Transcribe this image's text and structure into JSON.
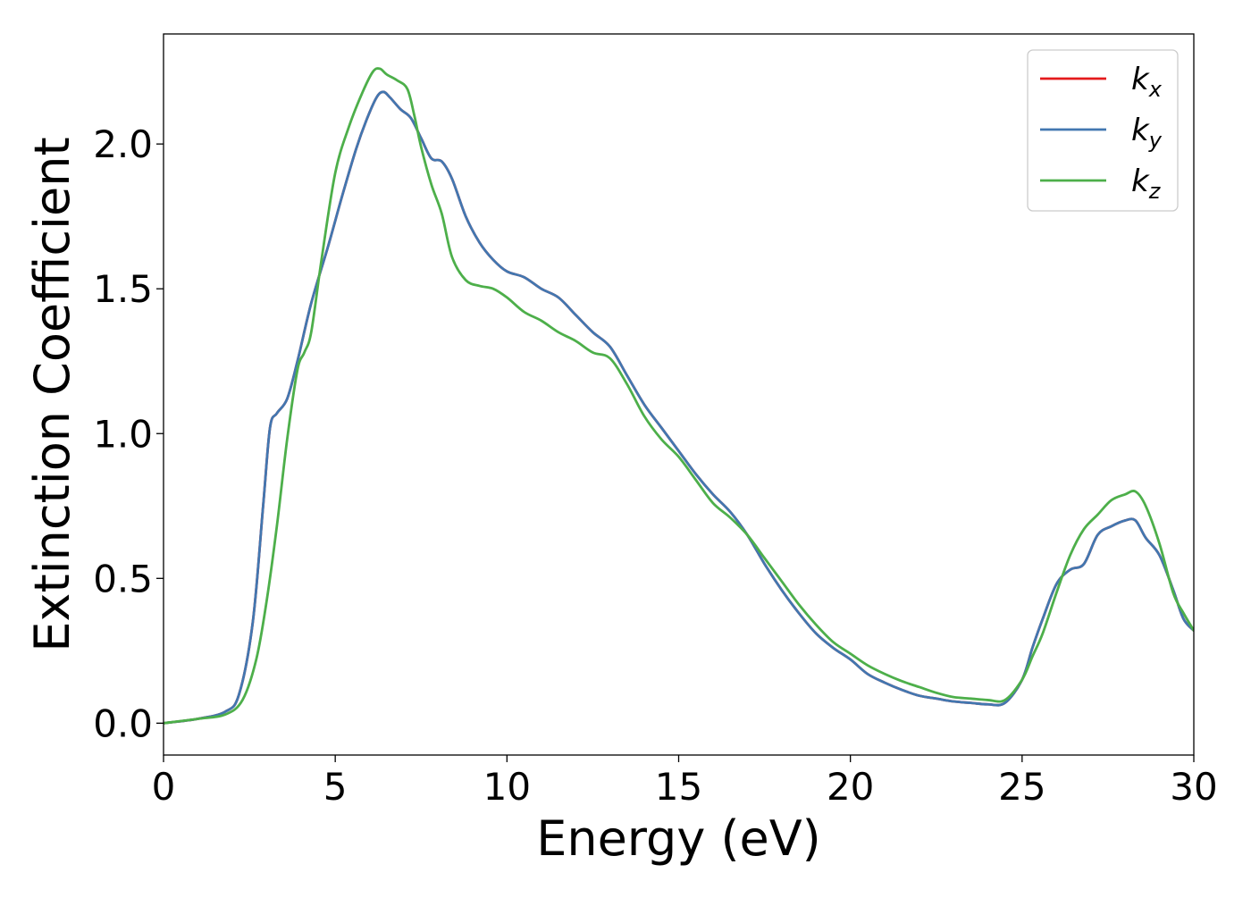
{
  "chart_data": {
    "type": "line",
    "title": "",
    "xlabel": "Energy (eV)",
    "ylabel": "Extinction Coefficient",
    "xlim": [
      0,
      30
    ],
    "ylim": [
      -0.11,
      2.38
    ],
    "xticks": [
      0,
      5,
      10,
      15,
      20,
      25,
      30
    ],
    "xtick_labels": [
      "0",
      "5",
      "10",
      "15",
      "20",
      "25",
      "30"
    ],
    "yticks": [
      0.0,
      0.5,
      1.0,
      1.5,
      2.0
    ],
    "ytick_labels": [
      "0.0",
      "0.5",
      "1.0",
      "1.5",
      "2.0"
    ],
    "grid": false,
    "legend_position": "top-right",
    "series": [
      {
        "name": "k",
        "subscript": "x",
        "color": "#e41a1c",
        "x": [
          0,
          1,
          1.8,
          2.2,
          2.6,
          2.9,
          3.1,
          3.3,
          3.6,
          3.9,
          4.3,
          4.8,
          5.2,
          5.6,
          5.9,
          6.2,
          6.4,
          6.6,
          6.9,
          7.2,
          7.5,
          7.8,
          8.1,
          8.4,
          8.8,
          9.2,
          9.6,
          10.0,
          10.5,
          11.0,
          11.5,
          12.0,
          12.5,
          13.0,
          13.5,
          14.0,
          14.5,
          15.0,
          15.5,
          16.0,
          16.5,
          17.0,
          17.5,
          18.0,
          18.5,
          19.0,
          19.5,
          20.0,
          20.5,
          21.0,
          21.5,
          22.0,
          22.5,
          23.0,
          23.5,
          24.0,
          24.5,
          25.0,
          25.3,
          25.6,
          26.0,
          26.4,
          26.8,
          27.2,
          27.6,
          28.0,
          28.3,
          28.6,
          29.0,
          29.4,
          29.7,
          30.0
        ],
        "y": [
          0.0,
          0.015,
          0.04,
          0.1,
          0.35,
          0.75,
          1.02,
          1.07,
          1.12,
          1.25,
          1.45,
          1.65,
          1.82,
          1.98,
          2.08,
          2.16,
          2.18,
          2.16,
          2.12,
          2.09,
          2.02,
          1.95,
          1.94,
          1.88,
          1.75,
          1.66,
          1.6,
          1.56,
          1.54,
          1.5,
          1.47,
          1.41,
          1.35,
          1.3,
          1.2,
          1.1,
          1.02,
          0.94,
          0.86,
          0.79,
          0.73,
          0.65,
          0.55,
          0.46,
          0.38,
          0.31,
          0.26,
          0.22,
          0.17,
          0.14,
          0.115,
          0.095,
          0.085,
          0.075,
          0.07,
          0.065,
          0.07,
          0.15,
          0.26,
          0.36,
          0.48,
          0.53,
          0.55,
          0.65,
          0.68,
          0.7,
          0.7,
          0.64,
          0.58,
          0.46,
          0.36,
          0.32
        ]
      },
      {
        "name": "k",
        "subscript": "y",
        "color": "#4277b0",
        "x": [
          0,
          1,
          1.8,
          2.2,
          2.6,
          2.9,
          3.1,
          3.3,
          3.6,
          3.9,
          4.3,
          4.8,
          5.2,
          5.6,
          5.9,
          6.2,
          6.4,
          6.6,
          6.9,
          7.2,
          7.5,
          7.8,
          8.1,
          8.4,
          8.8,
          9.2,
          9.6,
          10.0,
          10.5,
          11.0,
          11.5,
          12.0,
          12.5,
          13.0,
          13.5,
          14.0,
          14.5,
          15.0,
          15.5,
          16.0,
          16.5,
          17.0,
          17.5,
          18.0,
          18.5,
          19.0,
          19.5,
          20.0,
          20.5,
          21.0,
          21.5,
          22.0,
          22.5,
          23.0,
          23.5,
          24.0,
          24.5,
          25.0,
          25.3,
          25.6,
          26.0,
          26.4,
          26.8,
          27.2,
          27.6,
          28.0,
          28.3,
          28.6,
          29.0,
          29.4,
          29.7,
          30.0
        ],
        "y": [
          0.0,
          0.015,
          0.04,
          0.1,
          0.35,
          0.75,
          1.02,
          1.07,
          1.12,
          1.25,
          1.45,
          1.65,
          1.82,
          1.98,
          2.08,
          2.16,
          2.18,
          2.16,
          2.12,
          2.09,
          2.02,
          1.95,
          1.94,
          1.88,
          1.75,
          1.66,
          1.6,
          1.56,
          1.54,
          1.5,
          1.47,
          1.41,
          1.35,
          1.3,
          1.2,
          1.1,
          1.02,
          0.94,
          0.86,
          0.79,
          0.73,
          0.65,
          0.55,
          0.46,
          0.38,
          0.31,
          0.26,
          0.22,
          0.17,
          0.14,
          0.115,
          0.095,
          0.085,
          0.075,
          0.07,
          0.065,
          0.07,
          0.15,
          0.26,
          0.36,
          0.48,
          0.53,
          0.55,
          0.65,
          0.68,
          0.7,
          0.7,
          0.64,
          0.58,
          0.46,
          0.36,
          0.32
        ]
      },
      {
        "name": "k",
        "subscript": "z",
        "color": "#4daf4a",
        "x": [
          0,
          1,
          1.8,
          2.3,
          2.7,
          3.0,
          3.3,
          3.6,
          3.9,
          4.1,
          4.3,
          4.6,
          5.0,
          5.4,
          5.8,
          6.1,
          6.3,
          6.5,
          6.8,
          7.1,
          7.3,
          7.5,
          7.8,
          8.1,
          8.4,
          8.8,
          9.2,
          9.6,
          10.0,
          10.5,
          11.0,
          11.5,
          12.0,
          12.5,
          13.0,
          13.5,
          14.0,
          14.5,
          15.0,
          15.5,
          16.0,
          16.5,
          17.0,
          17.5,
          18.0,
          18.5,
          19.0,
          19.5,
          20.0,
          20.5,
          21.0,
          21.5,
          22.0,
          22.5,
          23.0,
          23.5,
          24.0,
          24.5,
          25.0,
          25.3,
          25.6,
          26.0,
          26.4,
          26.8,
          27.2,
          27.6,
          28.0,
          28.3,
          28.6,
          29.0,
          29.4,
          29.7,
          30.0
        ],
        "y": [
          0.0,
          0.015,
          0.03,
          0.08,
          0.22,
          0.42,
          0.68,
          0.98,
          1.22,
          1.28,
          1.35,
          1.6,
          1.9,
          2.06,
          2.18,
          2.25,
          2.26,
          2.24,
          2.22,
          2.19,
          2.1,
          1.99,
          1.86,
          1.76,
          1.61,
          1.53,
          1.51,
          1.5,
          1.47,
          1.42,
          1.39,
          1.35,
          1.32,
          1.28,
          1.26,
          1.17,
          1.06,
          0.98,
          0.92,
          0.84,
          0.76,
          0.71,
          0.65,
          0.57,
          0.49,
          0.41,
          0.34,
          0.28,
          0.24,
          0.2,
          0.17,
          0.145,
          0.125,
          0.105,
          0.09,
          0.085,
          0.08,
          0.08,
          0.15,
          0.23,
          0.31,
          0.45,
          0.58,
          0.67,
          0.72,
          0.77,
          0.79,
          0.8,
          0.75,
          0.62,
          0.45,
          0.38,
          0.32
        ]
      }
    ]
  }
}
